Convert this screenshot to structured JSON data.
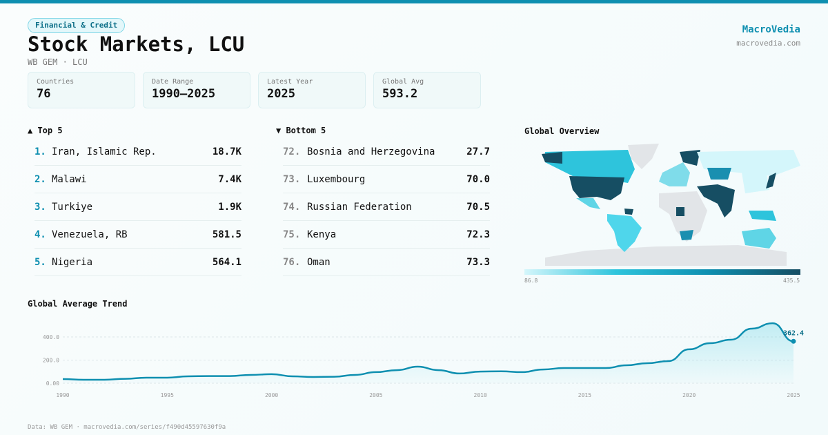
{
  "category": "Financial & Credit",
  "title": "Stock Markets, LCU",
  "subtitle": "WB GEM · LCU",
  "brand": {
    "name": "MacroVedia",
    "url": "macrovedia.com"
  },
  "stats": [
    {
      "label": "Countries",
      "value": "76"
    },
    {
      "label": "Date Range",
      "value": "1990–2025"
    },
    {
      "label": "Latest Year",
      "value": "2025"
    },
    {
      "label": "Global Avg",
      "value": "593.2"
    }
  ],
  "top": {
    "title": "▲ Top 5",
    "items": [
      {
        "rank": "1.",
        "name": "Iran, Islamic Rep.",
        "value": "18.7K"
      },
      {
        "rank": "2.",
        "name": "Malawi",
        "value": "7.4K"
      },
      {
        "rank": "3.",
        "name": "Turkiye",
        "value": "1.9K"
      },
      {
        "rank": "4.",
        "name": "Venezuela, RB",
        "value": "581.5"
      },
      {
        "rank": "5.",
        "name": "Nigeria",
        "value": "564.1"
      }
    ]
  },
  "bottom": {
    "title": "▼ Bottom 5",
    "items": [
      {
        "rank": "72.",
        "name": "Bosnia and Herzegovina",
        "value": "27.7"
      },
      {
        "rank": "73.",
        "name": "Luxembourg",
        "value": "70.0"
      },
      {
        "rank": "74.",
        "name": "Russian Federation",
        "value": "70.5"
      },
      {
        "rank": "75.",
        "name": "Kenya",
        "value": "72.3"
      },
      {
        "rank": "76.",
        "name": "Oman",
        "value": "73.3"
      }
    ]
  },
  "map": {
    "title": "Global Overview",
    "legend_min": "86.8",
    "legend_max": "435.5",
    "colors": {
      "low": "#d4f6fb",
      "mid": "#2ec4dc",
      "high": "#164e63",
      "nodata": "#e2e5e8"
    }
  },
  "chart_data": {
    "type": "area",
    "title": "Global Average Trend",
    "x": [
      1990,
      1991,
      1992,
      1993,
      1994,
      1995,
      1996,
      1997,
      1998,
      1999,
      2000,
      2001,
      2002,
      2003,
      2004,
      2005,
      2006,
      2007,
      2008,
      2009,
      2010,
      2011,
      2012,
      2013,
      2014,
      2015,
      2016,
      2017,
      2018,
      2019,
      2020,
      2021,
      2022,
      2023,
      2024,
      2025
    ],
    "y": [
      36,
      30,
      30,
      38,
      48,
      48,
      60,
      62,
      62,
      72,
      78,
      60,
      54,
      56,
      72,
      96,
      113,
      143,
      113,
      84,
      101,
      103,
      96,
      119,
      131,
      131,
      131,
      155,
      173,
      191,
      293,
      346,
      376,
      472,
      519,
      362.4
    ],
    "xticks": [
      "1990",
      "1995",
      "2000",
      "2005",
      "2010",
      "2015",
      "2020",
      "2025"
    ],
    "yticks": [
      "0.00",
      "200.0",
      "400.0"
    ],
    "ylim": [
      0,
      540
    ],
    "last_label": "362.4",
    "color": "#0e8fb0",
    "grid": true
  },
  "footer": "Data: WB GEM · macrovedia.com/series/f490d45597630f9a"
}
